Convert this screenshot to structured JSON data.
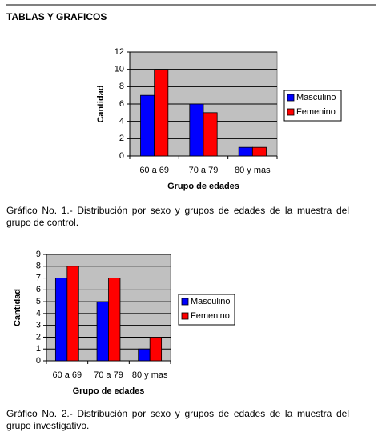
{
  "header": {
    "title": "TABLAS Y GRAFICOS"
  },
  "chart_data": [
    {
      "type": "bar",
      "xlabel": "Grupo de edades",
      "ylabel": "Cantidad",
      "categories": [
        "60 a 69",
        "70 a 79",
        "80 y mas"
      ],
      "series": [
        {
          "name": "Masculino",
          "color": "#0000ff",
          "values": [
            7,
            6,
            1
          ]
        },
        {
          "name": "Femenino",
          "color": "#ff0000",
          "values": [
            10,
            5,
            1
          ]
        }
      ],
      "ylim": [
        0,
        12
      ],
      "yticks": [
        0,
        2,
        4,
        6,
        8,
        10,
        12
      ],
      "grid": true,
      "legend": "right",
      "caption": "Gráfico No. 1.- Distribución por sexo y grupos de edades de la muestra del grupo de control."
    },
    {
      "type": "bar",
      "xlabel": "Grupo de edades",
      "ylabel": "Cantidad",
      "categories": [
        "60 a 69",
        "70 a 79",
        "80 y mas"
      ],
      "series": [
        {
          "name": "Masculino",
          "color": "#0000ff",
          "values": [
            7,
            5,
            1
          ]
        },
        {
          "name": "Femenino",
          "color": "#ff0000",
          "values": [
            8,
            7,
            2
          ]
        }
      ],
      "ylim": [
        0,
        9
      ],
      "yticks": [
        0,
        1,
        2,
        3,
        4,
        5,
        6,
        7,
        8,
        9
      ],
      "grid": true,
      "legend": "right",
      "caption": "Gráfico No. 2.- Distribución por sexo y grupos de edades de la muestra del grupo investigativo."
    }
  ]
}
